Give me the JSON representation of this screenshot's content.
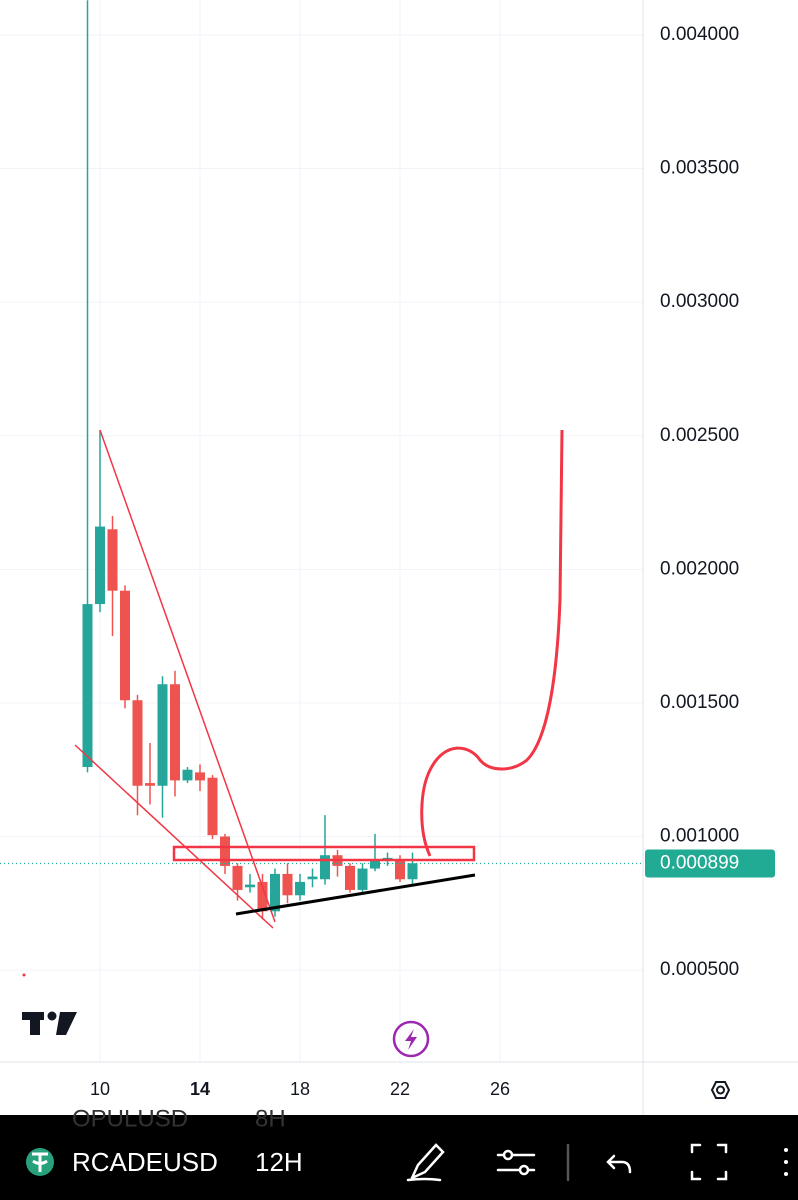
{
  "chart_data": {
    "type": "candlestick",
    "x": [
      9.5,
      10,
      10.5,
      11,
      11.5,
      12,
      12.5,
      13,
      13.5,
      14,
      14.5,
      15,
      15.5,
      16,
      16.5,
      17,
      17.5,
      18,
      18.5,
      19,
      19.5,
      20,
      20.5,
      21,
      21.5,
      22,
      22.5
    ],
    "open": [
      0.00126,
      0.00187,
      0.00215,
      0.00192,
      0.00151,
      0.0012,
      0.00119,
      0.00157,
      0.00121,
      0.00124,
      0.00122,
      0.001,
      0.00089,
      0.00081,
      0.00083,
      0.00072,
      0.00086,
      0.00078,
      0.00084,
      0.00084,
      0.00093,
      0.00089,
      0.0008,
      0.00088,
      0.00091,
      0.00091,
      0.00084
    ],
    "high": [
      0.00413,
      0.00252,
      0.0022,
      0.00194,
      0.00153,
      0.00135,
      0.0016,
      0.00162,
      0.00126,
      0.00127,
      0.00123,
      0.00101,
      0.0009,
      0.00086,
      0.00086,
      0.00088,
      0.0009,
      0.00086,
      0.00088,
      0.00108,
      0.00095,
      0.0009,
      0.0009,
      0.00101,
      0.00094,
      0.00093,
      0.00094
    ],
    "low": [
      0.00124,
      0.00184,
      0.00175,
      0.00148,
      0.00108,
      0.00112,
      0.00107,
      0.00115,
      0.0012,
      0.00117,
      0.00099,
      0.00086,
      0.00076,
      0.00079,
      0.00069,
      0.0007,
      0.00075,
      0.00076,
      0.00081,
      0.00082,
      0.00085,
      0.00079,
      0.00079,
      0.00087,
      0.00089,
      0.00083,
      0.00082
    ],
    "close": [
      0.00187,
      0.00216,
      0.00192,
      0.00151,
      0.00119,
      0.00119,
      0.00157,
      0.00121,
      0.00125,
      0.00121,
      0.001005,
      0.00089,
      0.0008,
      0.00082,
      0.00072,
      0.00086,
      0.00078,
      0.00083,
      0.00085,
      0.00093,
      0.00089,
      0.0008,
      0.00088,
      0.00091,
      0.00092,
      0.00084,
      0.0009
    ],
    "up_color": "#26a69a",
    "down_color": "#ef5350",
    "xlim": [
      6,
      31.72
    ],
    "xticks": [
      10,
      14,
      18,
      22,
      26
    ],
    "ylim": [
      0.000156,
      0.004131
    ],
    "yticks": [
      {
        "value": 0.0005,
        "label": "0.000500"
      },
      {
        "value": 0.001,
        "label": "0.001000"
      },
      {
        "value": 0.0015,
        "label": "0.001500"
      },
      {
        "value": 0.002,
        "label": "0.002000"
      },
      {
        "value": 0.0025,
        "label": "0.002500"
      },
      {
        "value": 0.003,
        "label": "0.003000"
      },
      {
        "value": 0.0035,
        "label": "0.003500"
      },
      {
        "value": 0.004,
        "label": "0.004000"
      }
    ],
    "grid": true,
    "last_price": 0.000899,
    "last_price_color": "#22ab94"
  },
  "toolbar": {
    "symbol": "RCADEUSD",
    "interval": "12H",
    "ghost_symbol": "OPULUSD",
    "ghost_interval": "8H"
  }
}
